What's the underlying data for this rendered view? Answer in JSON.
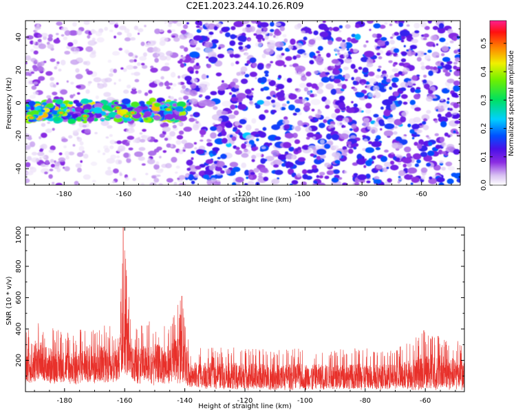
{
  "title": "C2E1.2023.244.10.26.R09",
  "colors": {
    "snr_line": "#e8302a",
    "background": "#ffffff",
    "frame": "#000000"
  },
  "chart_data": [
    {
      "type": "heatmap",
      "title": "C2E1.2023.244.10.26.R09",
      "xlabel": "Height of straight line (km)",
      "ylabel": "Frequency (Hz)",
      "xlim": [
        -193,
        -47
      ],
      "ylim": [
        -50,
        50
      ],
      "xticks": [
        -180,
        -160,
        -140,
        -120,
        -100,
        -80,
        -60
      ],
      "yticks": [
        -40,
        -20,
        0,
        20,
        40
      ],
      "colorbar": {
        "label": "Normalized spectral amplitude",
        "range": [
          0,
          0.58
        ],
        "ticks": [
          0.0,
          0.1,
          0.2,
          0.3,
          0.4,
          0.5
        ],
        "colormap": "rainbow (white-violet-blue-cyan-green-yellow-red-pink)"
      },
      "features": [
        {
          "description": "bright narrow band near 0 to -10 Hz",
          "x_range": [
            -193,
            -140
          ],
          "frequency_hz": -5,
          "peak_amplitude": 0.45
        },
        {
          "description": "dense noise region",
          "x_range": [
            -140,
            -47
          ],
          "typical_amplitude": 0.1
        }
      ]
    },
    {
      "type": "line",
      "xlabel": "Height of straight line (km)",
      "ylabel": "SNR (10 * v/v)",
      "xlim": [
        -193,
        -47
      ],
      "ylim": [
        0,
        1050
      ],
      "xticks": [
        -180,
        -160,
        -140,
        -120,
        -100,
        -80,
        -60
      ],
      "yticks": [
        200,
        400,
        600,
        800,
        1000
      ],
      "series": [
        {
          "color": "#e8302a",
          "envelope": [
            {
              "x": -193,
              "low": 40,
              "high": 380
            },
            {
              "x": -190,
              "low": 60,
              "high": 520
            },
            {
              "x": -185,
              "low": 50,
              "high": 420
            },
            {
              "x": -180,
              "low": 50,
              "high": 380
            },
            {
              "x": -175,
              "low": 40,
              "high": 400
            },
            {
              "x": -170,
              "low": 50,
              "high": 480
            },
            {
              "x": -165,
              "low": 60,
              "high": 420
            },
            {
              "x": -162,
              "low": 60,
              "high": 450
            },
            {
              "x": -160,
              "low": 80,
              "high": 1050
            },
            {
              "x": -158,
              "low": 60,
              "high": 420
            },
            {
              "x": -155,
              "low": 40,
              "high": 440
            },
            {
              "x": -150,
              "low": 40,
              "high": 460
            },
            {
              "x": -145,
              "low": 40,
              "high": 440
            },
            {
              "x": -141,
              "low": 50,
              "high": 610
            },
            {
              "x": -138,
              "low": 20,
              "high": 290
            },
            {
              "x": -130,
              "low": 15,
              "high": 280
            },
            {
              "x": -120,
              "low": 10,
              "high": 290
            },
            {
              "x": -110,
              "low": 10,
              "high": 270
            },
            {
              "x": -100,
              "low": 10,
              "high": 280
            },
            {
              "x": -90,
              "low": 10,
              "high": 270
            },
            {
              "x": -80,
              "low": 10,
              "high": 280
            },
            {
              "x": -70,
              "low": 10,
              "high": 270
            },
            {
              "x": -60,
              "low": 10,
              "high": 390
            },
            {
              "x": -47,
              "low": 10,
              "high": 320
            }
          ],
          "peaks": [
            {
              "x": -160.5,
              "y": 1050
            },
            {
              "x": -141,
              "y": 610
            },
            {
              "x": -60.5,
              "y": 390
            }
          ]
        }
      ]
    }
  ]
}
